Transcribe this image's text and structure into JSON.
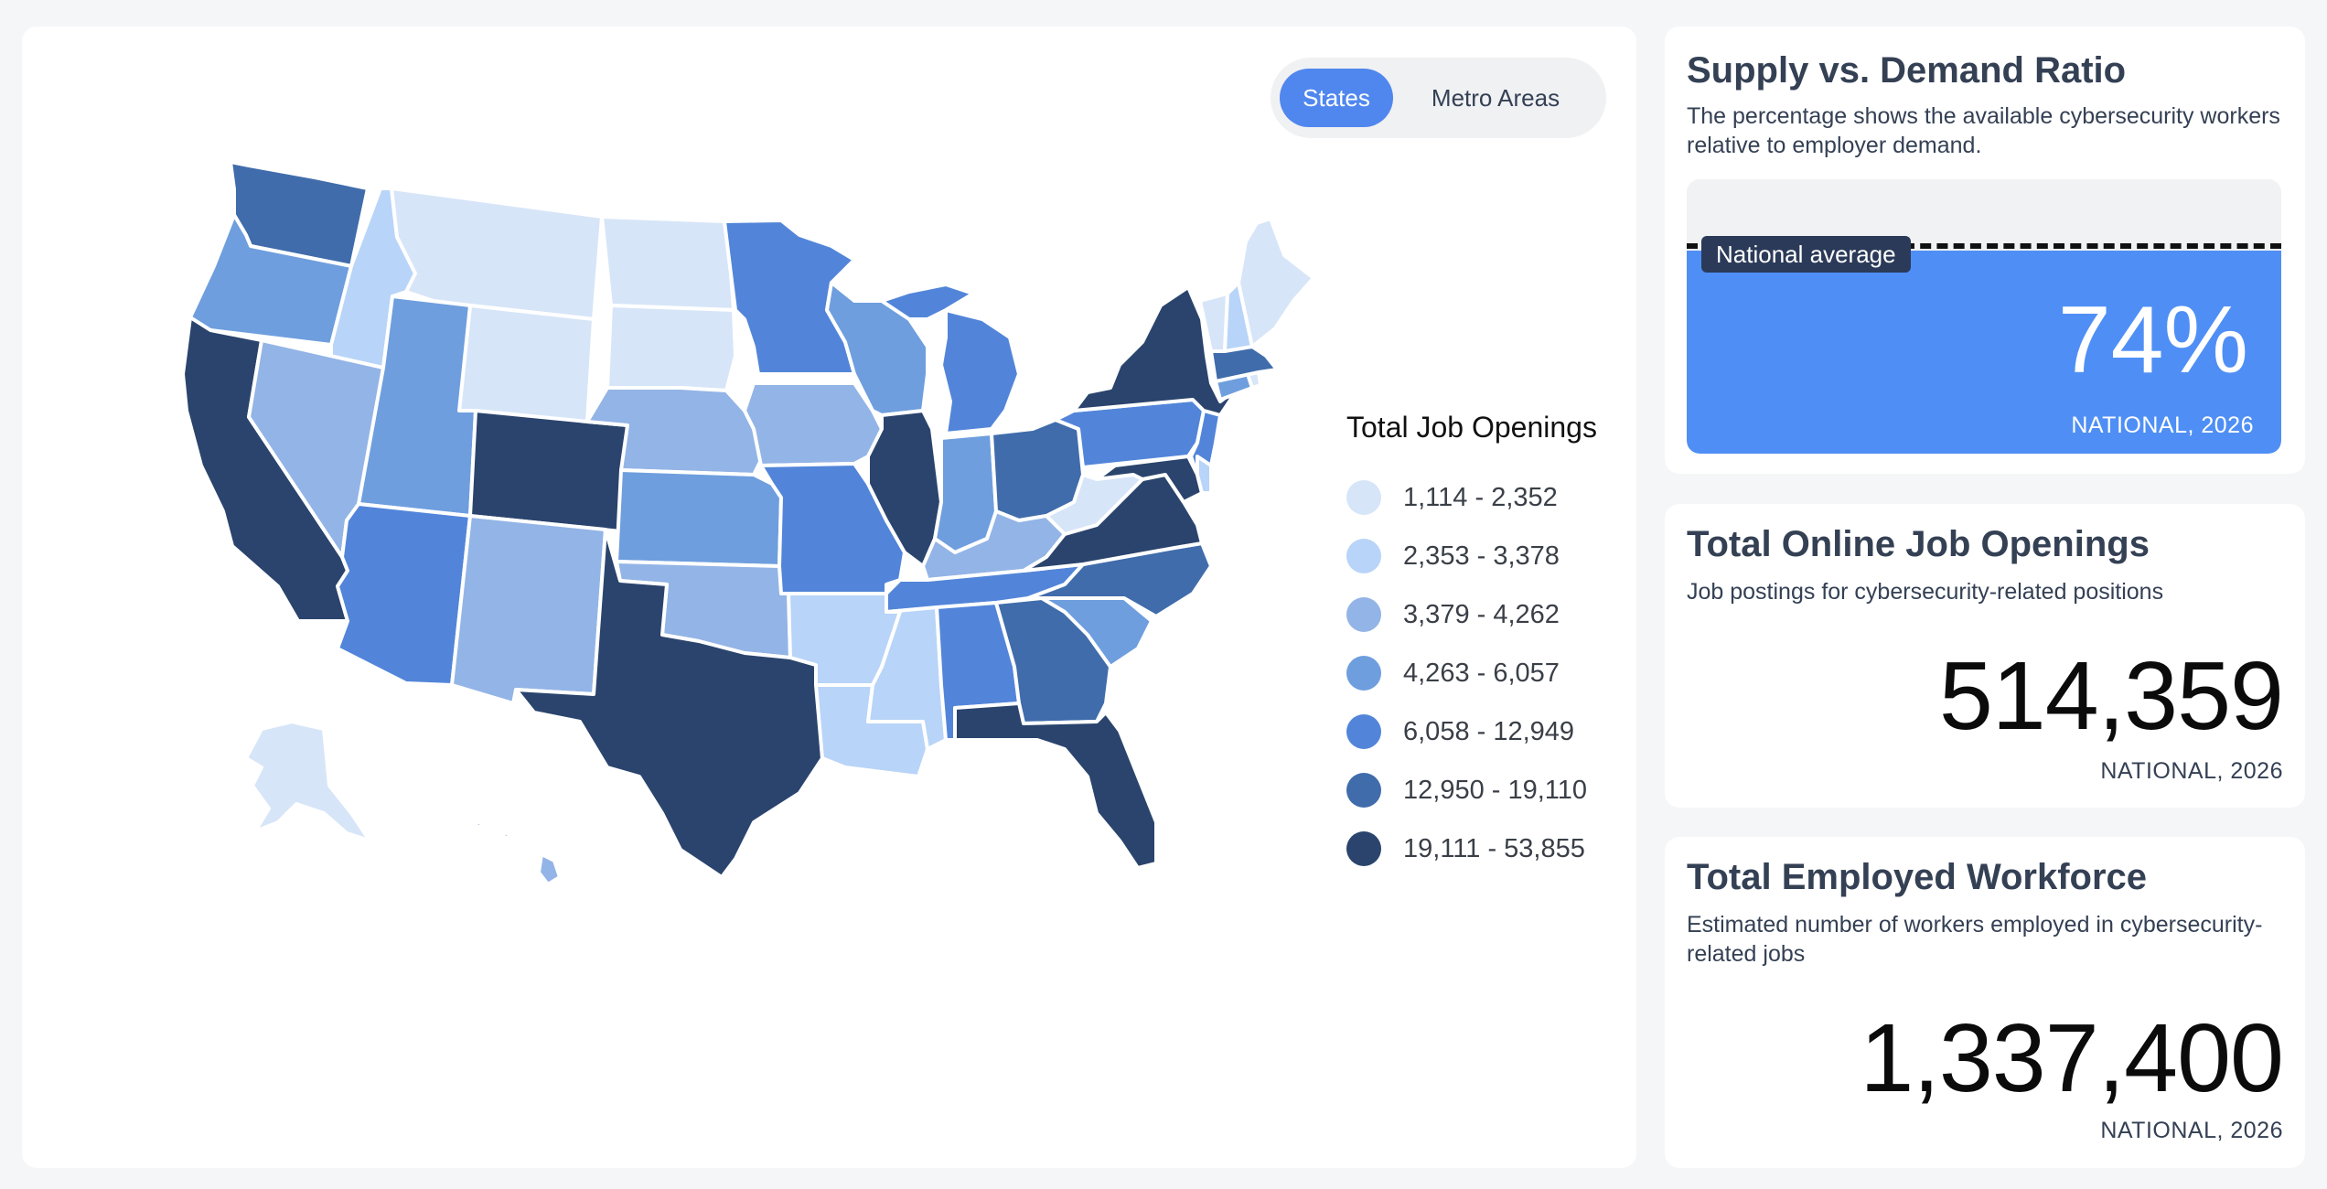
{
  "map": {
    "toggle": {
      "active": "States",
      "inactive": "Metro Areas"
    },
    "legend": {
      "title": "Total Job Openings",
      "items": [
        {
          "label": "1,114 - 2,352",
          "color": "#d7e5f8"
        },
        {
          "label": "2,353 - 3,378",
          "color": "#b8d4f8"
        },
        {
          "label": "3,379 - 4,262",
          "color": "#93b4e6"
        },
        {
          "label": "4,263 - 6,057",
          "color": "#6e9ede"
        },
        {
          "label": "6,058 - 12,949",
          "color": "#5285d9"
        },
        {
          "label": "12,950 - 19,110",
          "color": "#406cab"
        },
        {
          "label": "19,111 - 53,855",
          "color": "#2a446d"
        }
      ]
    }
  },
  "ratio_card": {
    "title": "Supply vs. Demand Ratio",
    "subtitle": "The percentage shows the available cybersecurity workers relative to employer demand.",
    "tag": "National average",
    "value": "74%",
    "fill_fraction": 0.74,
    "foot": "NATIONAL, 2026"
  },
  "openings_card": {
    "title": "Total Online Job Openings",
    "subtitle": "Job postings for cybersecurity-related positions",
    "value": "514,359",
    "foot": "NATIONAL, 2026"
  },
  "workforce_card": {
    "title": "Total Employed Workforce",
    "subtitle": "Estimated number of workers employed in cybersecurity-related jobs",
    "value": "1,337,400",
    "foot": "NATIONAL, 2026"
  },
  "states": [
    {
      "id": "WA",
      "tier": 5
    },
    {
      "id": "OR",
      "tier": 3
    },
    {
      "id": "CA",
      "tier": 6
    },
    {
      "id": "ID",
      "tier": 1
    },
    {
      "id": "NV",
      "tier": 2
    },
    {
      "id": "MT",
      "tier": 0
    },
    {
      "id": "WY",
      "tier": 0
    },
    {
      "id": "UT",
      "tier": 3
    },
    {
      "id": "AZ",
      "tier": 4
    },
    {
      "id": "CO",
      "tier": 6
    },
    {
      "id": "NM",
      "tier": 2
    },
    {
      "id": "ND",
      "tier": 0
    },
    {
      "id": "SD",
      "tier": 0
    },
    {
      "id": "NE",
      "tier": 2
    },
    {
      "id": "KS",
      "tier": 3
    },
    {
      "id": "OK",
      "tier": 2
    },
    {
      "id": "TX",
      "tier": 6
    },
    {
      "id": "MN",
      "tier": 4
    },
    {
      "id": "IA",
      "tier": 2
    },
    {
      "id": "MO",
      "tier": 4
    },
    {
      "id": "AR",
      "tier": 1
    },
    {
      "id": "LA",
      "tier": 1
    },
    {
      "id": "WI",
      "tier": 3
    },
    {
      "id": "IL",
      "tier": 6
    },
    {
      "id": "MI",
      "tier": 4
    },
    {
      "id": "IN",
      "tier": 3
    },
    {
      "id": "OH",
      "tier": 5
    },
    {
      "id": "KY",
      "tier": 2
    },
    {
      "id": "TN",
      "tier": 4
    },
    {
      "id": "MS",
      "tier": 1
    },
    {
      "id": "AL",
      "tier": 4
    },
    {
      "id": "GA",
      "tier": 5
    },
    {
      "id": "FL",
      "tier": 6
    },
    {
      "id": "SC",
      "tier": 3
    },
    {
      "id": "NC",
      "tier": 5
    },
    {
      "id": "VA",
      "tier": 6
    },
    {
      "id": "WV",
      "tier": 0
    },
    {
      "id": "PA",
      "tier": 4
    },
    {
      "id": "NY",
      "tier": 6
    },
    {
      "id": "NJ",
      "tier": 4
    },
    {
      "id": "MD",
      "tier": 6
    },
    {
      "id": "DE",
      "tier": 1
    },
    {
      "id": "CT",
      "tier": 3
    },
    {
      "id": "RI",
      "tier": 0
    },
    {
      "id": "MA",
      "tier": 5
    },
    {
      "id": "VT",
      "tier": 0
    },
    {
      "id": "NH",
      "tier": 1
    },
    {
      "id": "ME",
      "tier": 0
    },
    {
      "id": "AK",
      "tier": 0
    },
    {
      "id": "HI",
      "tier": 2
    }
  ]
}
